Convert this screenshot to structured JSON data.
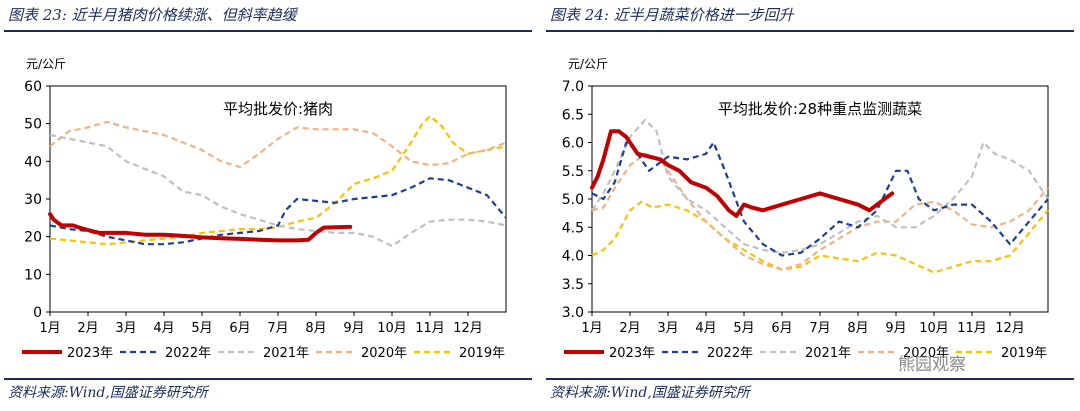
{
  "left": {
    "figure_title": "图表 23:  近半月猪肉价格续涨、但斜率趋缓",
    "source": "资料来源:Wind,国盛证券研究所"
  },
  "right": {
    "figure_title": "图表 24:  近半月蔬菜价格进一步回升",
    "source": "资料来源:Wind,国盛证券研究所"
  },
  "watermark": "熊园观察",
  "colors": {
    "2023年": "#c00000",
    "2022年": "#1f3e9a",
    "2021年": "#c0c0c0",
    "2020年": "#f4b183",
    "2019年": "#ffc000",
    "frame": "#000000",
    "title_rule": "#1a2c5b"
  },
  "chart_data": [
    {
      "type": "line",
      "title": "平均批发价:猪肉",
      "ylabel": "元/公斤",
      "ylim": [
        0,
        60
      ],
      "yticks": [
        "0",
        "10",
        "20",
        "30",
        "40",
        "50",
        "60"
      ],
      "xlim": [
        1,
        13
      ],
      "xticks": [
        "1月",
        "2月",
        "3月",
        "4月",
        "5月",
        "6月",
        "7月",
        "8月",
        "9月",
        "10月",
        "11月",
        "12月"
      ],
      "legend_position": "bottom",
      "series": [
        {
          "name": "2023年",
          "style": "solid",
          "x": [
            1,
            1.1,
            1.3,
            1.6,
            1.9,
            2.3,
            3.0,
            3.5,
            4.0,
            4.5,
            5.0,
            5.5,
            6.0,
            6.5,
            7.0,
            7.5,
            7.8,
            8.0,
            8.2,
            8.5,
            8.9
          ],
          "y": [
            26,
            24.5,
            23,
            23,
            22,
            21,
            21,
            20.5,
            20.5,
            20.2,
            19.8,
            19.6,
            19.4,
            19.2,
            19,
            19,
            19.2,
            21,
            22.4,
            22.5,
            22.6
          ]
        },
        {
          "name": "2022年",
          "style": "dashed",
          "x": [
            1,
            1.5,
            2.0,
            2.5,
            3.0,
            3.5,
            4.0,
            4.5,
            5.0,
            5.5,
            6.0,
            6.5,
            7.0,
            7.2,
            7.5,
            8.0,
            8.5,
            9.0,
            9.5,
            10.0,
            10.5,
            11.0,
            11.5,
            12.0,
            12.5,
            13.0
          ],
          "y": [
            23,
            22,
            21.5,
            20,
            19,
            18,
            18,
            18.5,
            19.5,
            20.5,
            21,
            21.5,
            23,
            27,
            30,
            29.5,
            29,
            30,
            30.5,
            31,
            33,
            35.5,
            35,
            33,
            31,
            25
          ]
        },
        {
          "name": "2021年",
          "style": "dashed",
          "x": [
            1,
            1.5,
            2.0,
            2.5,
            3.0,
            3.5,
            4.0,
            4.5,
            5.0,
            5.5,
            6.0,
            6.5,
            7.0,
            7.5,
            8.0,
            8.5,
            9.0,
            9.5,
            10.0,
            10.5,
            11.0,
            11.5,
            12.0,
            12.5,
            13.0
          ],
          "y": [
            47,
            46,
            45,
            44,
            40,
            38,
            36,
            32,
            31,
            28,
            26,
            24.5,
            23,
            22,
            21.5,
            21,
            21,
            20,
            17.5,
            21,
            24,
            24.5,
            24.5,
            24,
            23
          ]
        },
        {
          "name": "2020年",
          "style": "dashed",
          "x": [
            1,
            1.5,
            2.0,
            2.5,
            3.0,
            3.5,
            4.0,
            4.5,
            5.0,
            5.5,
            6.0,
            6.5,
            7.0,
            7.5,
            8.0,
            8.5,
            9.0,
            9.5,
            10.0,
            10.5,
            11.0,
            11.5,
            12.0,
            12.5,
            13.0
          ],
          "y": [
            44,
            48,
            49,
            50.5,
            49,
            48,
            47,
            45,
            43,
            40,
            38.5,
            42,
            46,
            49,
            48.5,
            48.5,
            48.5,
            47.5,
            44,
            40,
            39,
            39.5,
            42,
            43,
            45
          ]
        },
        {
          "name": "2019年",
          "style": "dashed",
          "x": [
            1,
            1.5,
            2.0,
            2.5,
            3.0,
            3.5,
            4.0,
            4.5,
            5.0,
            5.5,
            6.0,
            6.5,
            7.0,
            7.5,
            8.0,
            8.5,
            9.0,
            9.5,
            10.0,
            10.5,
            10.8,
            11.0,
            11.3,
            11.6,
            12.0,
            12.5,
            13.0
          ],
          "y": [
            19.5,
            19,
            18.5,
            18,
            18.5,
            19,
            19.5,
            20,
            21,
            21.5,
            22,
            22,
            22.5,
            24,
            25,
            29,
            34,
            35.5,
            37.5,
            45,
            50,
            52,
            49.5,
            45,
            42,
            43,
            44
          ]
        }
      ]
    },
    {
      "type": "line",
      "title": "平均批发价:28种重点监测蔬菜",
      "ylabel": "元/公斤",
      "ylim": [
        3.0,
        7.0
      ],
      "yticks": [
        "3.0",
        "3.5",
        "4.0",
        "4.5",
        "5.0",
        "5.5",
        "6.0",
        "6.5",
        "7.0"
      ],
      "xlim": [
        1,
        13
      ],
      "xticks": [
        "1月",
        "2月",
        "3月",
        "4月",
        "5月",
        "6月",
        "7月",
        "8月",
        "9月",
        "10月",
        "11月",
        "12月"
      ],
      "legend_position": "bottom",
      "series": [
        {
          "name": "2023年",
          "style": "solid",
          "x": [
            1,
            1.15,
            1.3,
            1.5,
            1.7,
            1.9,
            2.2,
            2.5,
            2.8,
            3.0,
            3.3,
            3.6,
            4.0,
            4.3,
            4.6,
            4.8,
            5.0,
            5.2,
            5.5,
            6.0,
            6.5,
            7.0,
            7.5,
            8.0,
            8.3,
            8.6,
            8.9
          ],
          "y": [
            5.2,
            5.4,
            5.7,
            6.2,
            6.2,
            6.1,
            5.8,
            5.75,
            5.7,
            5.6,
            5.5,
            5.3,
            5.2,
            5.05,
            4.8,
            4.7,
            4.9,
            4.85,
            4.8,
            4.9,
            5.0,
            5.1,
            5.0,
            4.9,
            4.8,
            4.95,
            5.1
          ]
        },
        {
          "name": "2022年",
          "style": "dashed",
          "x": [
            1,
            1.3,
            1.6,
            1.9,
            2.1,
            2.5,
            3.0,
            3.5,
            4.0,
            4.2,
            4.5,
            5.0,
            5.5,
            6.0,
            6.5,
            7.0,
            7.5,
            8.0,
            8.5,
            9.0,
            9.3,
            9.6,
            10.0,
            10.5,
            11.0,
            11.5,
            12.0,
            12.5,
            13.0
          ],
          "y": [
            5.1,
            5.0,
            5.3,
            6.0,
            5.9,
            5.5,
            5.75,
            5.7,
            5.8,
            6.0,
            5.5,
            4.6,
            4.2,
            4.0,
            4.05,
            4.3,
            4.6,
            4.5,
            4.8,
            5.5,
            5.5,
            5.0,
            4.8,
            4.9,
            4.9,
            4.6,
            4.2,
            4.6,
            5.0
          ]
        },
        {
          "name": "2021年",
          "style": "dashed",
          "x": [
            1,
            1.3,
            1.6,
            2.0,
            2.4,
            2.7,
            3.0,
            3.5,
            4.0,
            4.5,
            5.0,
            5.5,
            6.0,
            6.5,
            7.0,
            7.5,
            8.0,
            8.5,
            9.0,
            9.5,
            10.0,
            10.5,
            11.0,
            11.3,
            11.6,
            12.0,
            12.5,
            13.0
          ],
          "y": [
            4.8,
            5.1,
            5.5,
            6.1,
            6.4,
            6.2,
            5.4,
            5.0,
            4.8,
            4.5,
            4.2,
            4.1,
            4.05,
            4.1,
            4.2,
            4.4,
            4.6,
            4.7,
            4.5,
            4.5,
            4.7,
            5.0,
            5.4,
            6.0,
            5.8,
            5.7,
            5.5,
            5.0
          ]
        },
        {
          "name": "2020年",
          "style": "dashed",
          "x": [
            1,
            1.3,
            1.6,
            2.0,
            2.4,
            2.8,
            3.0,
            3.5,
            4.0,
            4.5,
            5.0,
            5.5,
            6.0,
            6.5,
            7.0,
            7.5,
            8.0,
            8.5,
            9.0,
            9.5,
            10.0,
            10.5,
            11.0,
            11.5,
            12.0,
            12.5,
            13.0
          ],
          "y": [
            4.8,
            4.85,
            5.2,
            5.6,
            5.8,
            5.7,
            5.5,
            5.0,
            4.6,
            4.3,
            4.0,
            3.85,
            3.75,
            3.85,
            4.1,
            4.3,
            4.5,
            4.6,
            4.6,
            4.9,
            4.95,
            4.8,
            4.55,
            4.5,
            4.6,
            4.8,
            5.2
          ]
        },
        {
          "name": "2019年",
          "style": "dashed",
          "x": [
            1,
            1.3,
            1.6,
            2.0,
            2.3,
            2.6,
            3.0,
            3.5,
            4.0,
            4.5,
            5.0,
            5.5,
            6.0,
            6.5,
            7.0,
            7.5,
            8.0,
            8.5,
            9.0,
            9.5,
            10.0,
            10.5,
            11.0,
            11.5,
            12.0,
            12.5,
            13.0
          ],
          "y": [
            4.0,
            4.1,
            4.3,
            4.8,
            4.95,
            4.85,
            4.9,
            4.8,
            4.6,
            4.3,
            4.1,
            3.9,
            3.75,
            3.8,
            4.0,
            3.95,
            3.9,
            4.05,
            4.0,
            3.85,
            3.7,
            3.8,
            3.9,
            3.9,
            4.0,
            4.4,
            4.8
          ]
        }
      ]
    }
  ]
}
